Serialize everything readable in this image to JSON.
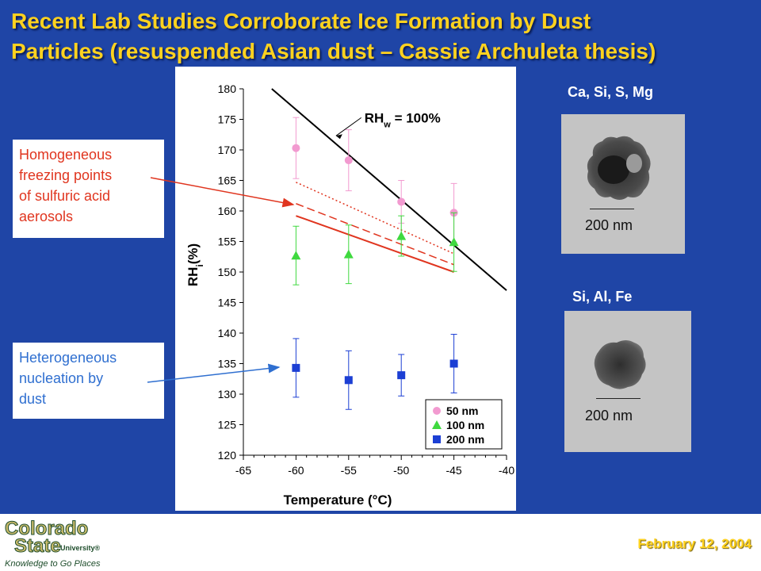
{
  "slide": {
    "title_line1": "Recent Lab Studies Corroborate Ice Formation by Dust",
    "title_line2": "Particles (resuspended Asian dust – Cassie Archuleta thesis)",
    "date": "February 12, 2004",
    "callout_homogeneous": [
      "Homogeneous",
      "freezing points",
      "of sulfuric acid",
      "aerosols"
    ],
    "callout_heterogeneous": [
      "Heterogeneous",
      "nucleation by",
      "dust"
    ],
    "colors": {
      "background": "#1f45a6",
      "title": "#ffd21f",
      "homogeneous_arrow": "#e0351f",
      "heterogeneous_arrow": "#2f6fd0"
    }
  },
  "logo": {
    "line1": "Colorado",
    "line2": "State",
    "line3": "University®",
    "tagline": "Knowledge to Go Places",
    "colors": {
      "fill": "#c8b96a",
      "outline": "#1e4d2b"
    }
  },
  "particles": [
    {
      "elements": "Ca, Si, S, Mg",
      "scale": "200 nm"
    },
    {
      "elements": "Si, Al, Fe",
      "scale": "200 nm"
    }
  ],
  "chart_data": {
    "type": "scatter",
    "xlabel": "Temperature (°C)",
    "ylabel_main": "RH",
    "ylabel_sub": "i",
    "ylabel_rest": "(%)",
    "xlim": [
      -65,
      -40
    ],
    "ylim": [
      120,
      180
    ],
    "xticks": [
      -65,
      -60,
      -55,
      -50,
      -45,
      -40
    ],
    "yticks": [
      120,
      125,
      130,
      135,
      140,
      145,
      150,
      155,
      160,
      165,
      170,
      175,
      180
    ],
    "series": [
      {
        "name": "50 nm",
        "color": "#f29ad0",
        "marker": "circle",
        "points": [
          {
            "x": -60,
            "y": 170.3,
            "err": 5
          },
          {
            "x": -55,
            "y": 168.3,
            "err": 5
          },
          {
            "x": -50,
            "y": 161.5,
            "err": 3.5
          },
          {
            "x": -45,
            "y": 159.7,
            "err": 4.8
          }
        ]
      },
      {
        "name": "100 nm",
        "color": "#3fd93f",
        "marker": "triangle",
        "points": [
          {
            "x": -60,
            "y": 152.7,
            "err": 4.8
          },
          {
            "x": -55,
            "y": 152.9,
            "err": 4.8
          },
          {
            "x": -50,
            "y": 155.9,
            "err": 3.3
          },
          {
            "x": -45,
            "y": 154.9,
            "err": 4.8
          }
        ]
      },
      {
        "name": "200 nm",
        "color": "#1c3fd4",
        "marker": "square",
        "points": [
          {
            "x": -60,
            "y": 134.3,
            "err": 4.8
          },
          {
            "x": -55,
            "y": 132.3,
            "err": 4.8
          },
          {
            "x": -50,
            "y": 133.1,
            "err": 3.4
          },
          {
            "x": -45,
            "y": 135.0,
            "err": 4.8
          }
        ]
      }
    ],
    "lines": [
      {
        "name": "RHw = 100%",
        "color": "#000000",
        "style": "solid",
        "x": [
          -62.3,
          -40
        ],
        "y": [
          180,
          147
        ]
      },
      {
        "name": "homogeneous-dotted",
        "color": "#e0351f",
        "style": "dotted",
        "x": [
          -60,
          -45
        ],
        "y": [
          164.7,
          153.0
        ]
      },
      {
        "name": "homogeneous-dashed",
        "color": "#e0351f",
        "style": "dashed",
        "x": [
          -60,
          -45
        ],
        "y": [
          161.2,
          151.2
        ]
      },
      {
        "name": "homogeneous-solid",
        "color": "#e0351f",
        "style": "solid",
        "x": [
          -60,
          -45
        ],
        "y": [
          159.2,
          150.0
        ]
      }
    ],
    "annotation": {
      "text_main": "RH",
      "text_sub": "w",
      "text_rest": " = 100%",
      "x": -53.5,
      "y": 174.5
    },
    "legend": {
      "placement": "bottom-right"
    }
  }
}
